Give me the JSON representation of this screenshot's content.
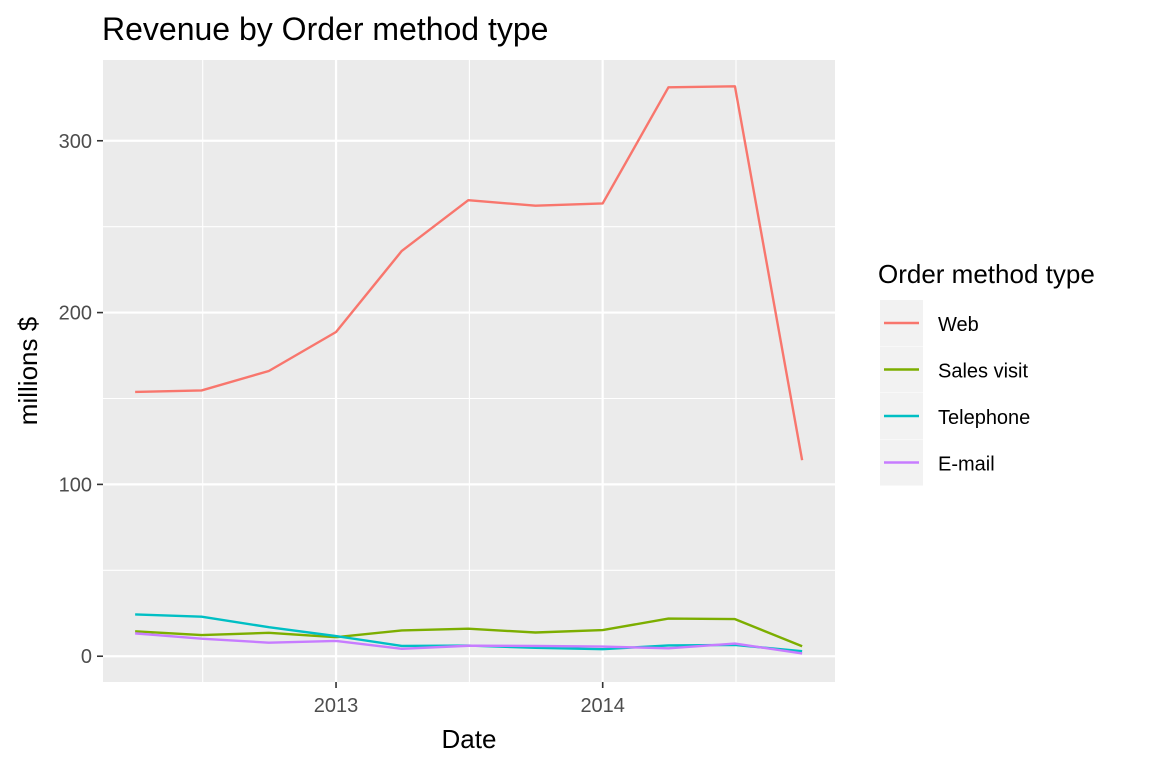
{
  "chart_data": {
    "type": "line",
    "title": "Revenue by Order method type",
    "xlabel": "Date",
    "ylabel": "millions $",
    "x_tick_labels": [
      "2013",
      "2014"
    ],
    "y_tick_labels": [
      "0",
      "100",
      "200",
      "300"
    ],
    "y_ticks": [
      0,
      100,
      200,
      300
    ],
    "ylim": [
      -15,
      347
    ],
    "x": [
      "2012-04-01",
      "2012-07-01",
      "2012-10-01",
      "2013-01-01",
      "2013-04-01",
      "2013-07-01",
      "2013-10-01",
      "2014-01-01",
      "2014-04-01",
      "2014-07-01",
      "2014-10-01"
    ],
    "xlim": [
      "2012-02-17",
      "2014-11-15"
    ],
    "x_tick_dates": [
      "2013-01-01",
      "2014-01-01"
    ],
    "grid": true,
    "legend": {
      "title": "Order method type",
      "placement": "right"
    },
    "series": [
      {
        "name": "Web",
        "color": "#F8766D",
        "values": [
          153.8,
          154.7,
          166.0,
          188.7,
          235.9,
          265.4,
          262.2,
          263.5,
          331.1,
          331.7,
          114.1
        ]
      },
      {
        "name": "Sales visit",
        "color": "#7CAE00",
        "values": [
          14.5,
          12.3,
          13.6,
          11.1,
          15.0,
          16.0,
          13.8,
          15.2,
          21.9,
          21.6,
          5.8
        ]
      },
      {
        "name": "Telephone",
        "color": "#00BFC4",
        "values": [
          24.3,
          23.0,
          16.9,
          11.7,
          6.0,
          6.2,
          4.9,
          4.1,
          6.3,
          6.6,
          2.9
        ]
      },
      {
        "name": "E-mail",
        "color": "#C77CFF",
        "values": [
          13.3,
          10.2,
          7.9,
          8.9,
          4.3,
          6.1,
          6.0,
          5.6,
          4.6,
          7.4,
          1.6
        ]
      }
    ]
  }
}
